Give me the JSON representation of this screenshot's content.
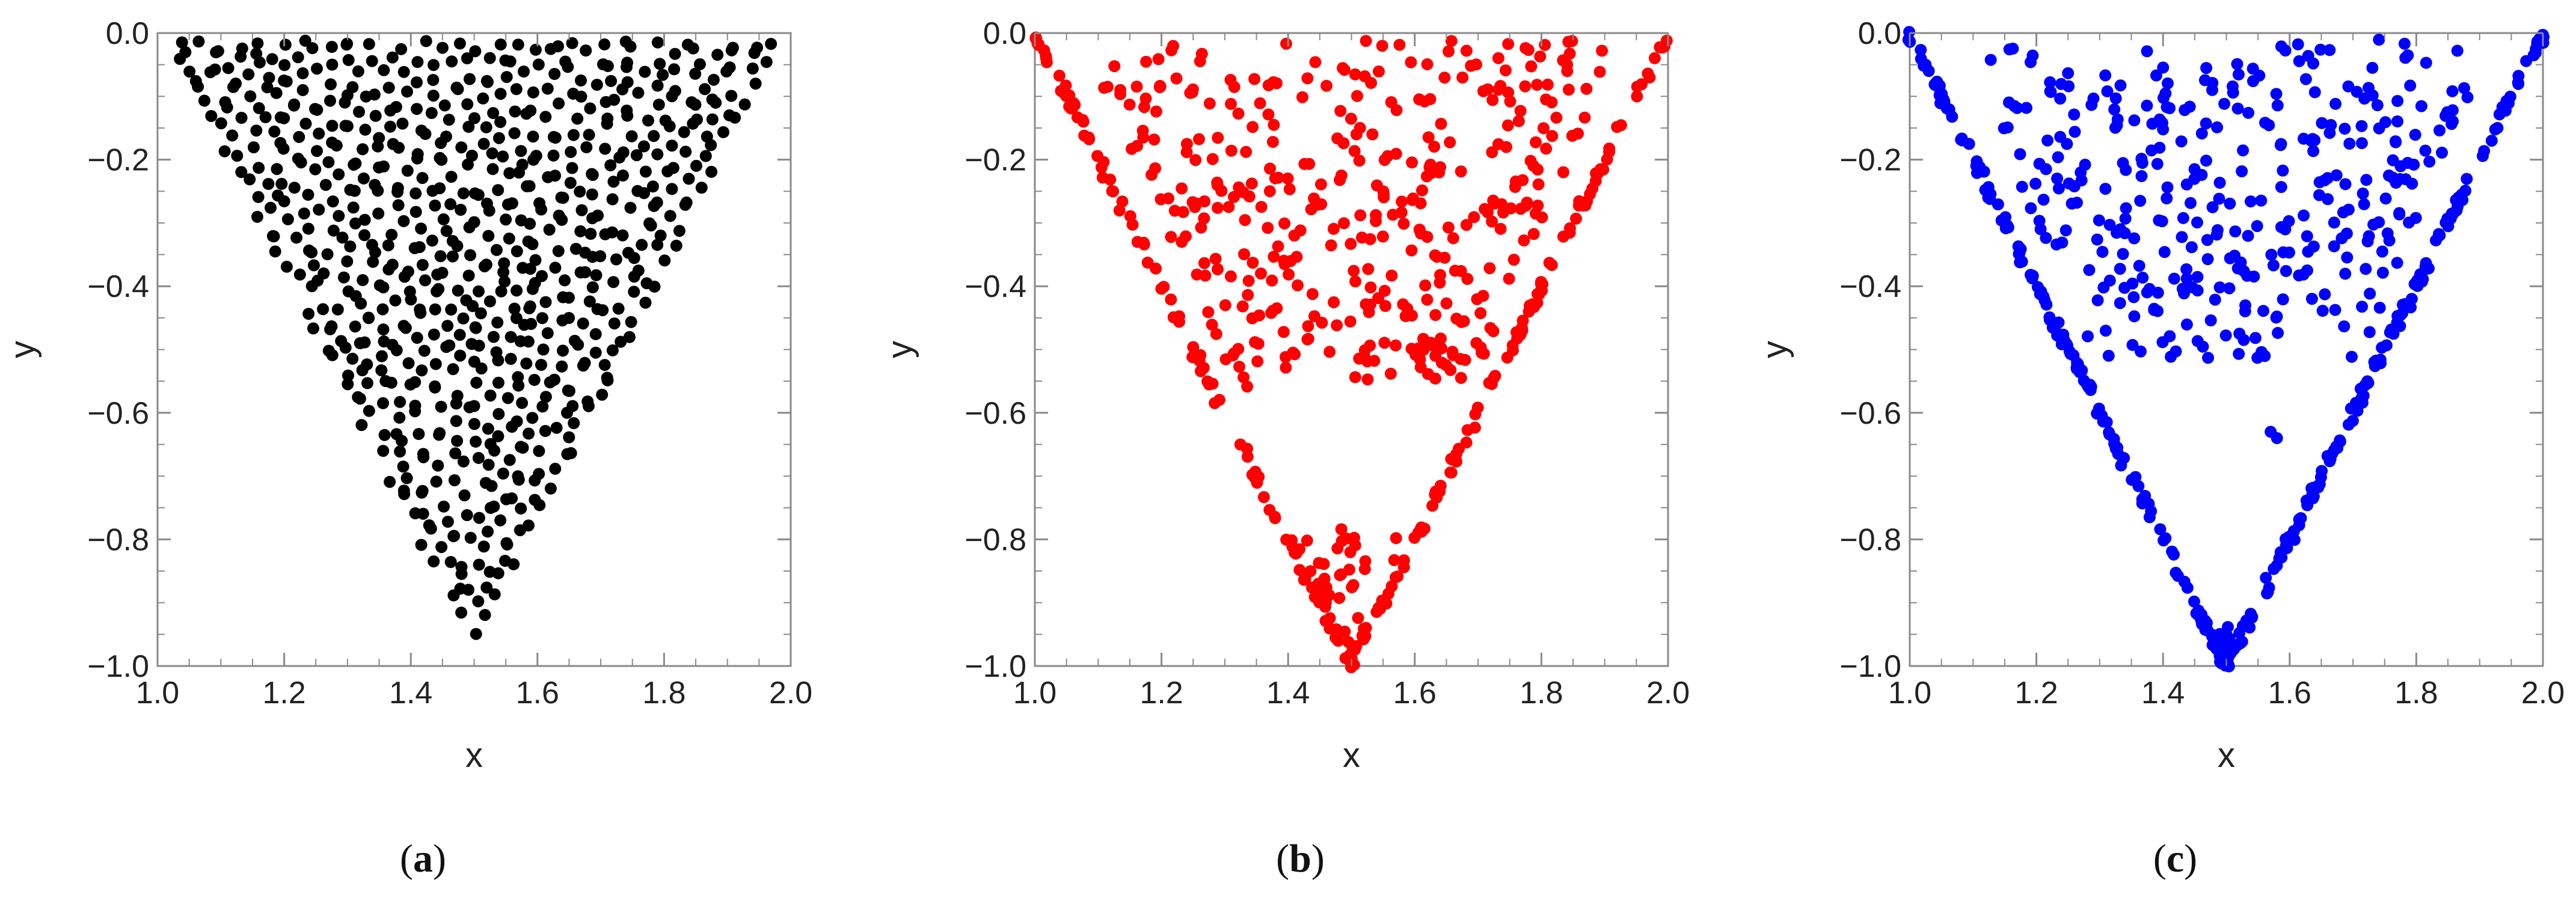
{
  "chart_data": [
    {
      "type": "scatter",
      "panel_label": "(a)",
      "panel_letter": "a",
      "xlabel": "x",
      "ylabel": "y",
      "xlim": [
        1.0,
        2.0
      ],
      "ylim": [
        -1.0,
        0.0
      ],
      "xticks": [
        "1.0",
        "1.2",
        "1.4",
        "1.6",
        "1.8",
        "2.0"
      ],
      "yticks": [
        "-1.0",
        "-0.8",
        "-0.6",
        "-0.4",
        "-0.2",
        "0.0"
      ],
      "color": "#000000",
      "distribution": "uniform-fill",
      "triangle": {
        "top_left": [
          1.0,
          0.0
        ],
        "top_right": [
          2.0,
          0.0
        ],
        "bottom": [
          1.5,
          -1.0
        ]
      },
      "n_points": 720,
      "seed": 11
    },
    {
      "type": "scatter",
      "panel_label": "(b)",
      "panel_letter": "b",
      "xlabel": "x",
      "ylabel": "y",
      "xlim": [
        1.0,
        2.0
      ],
      "ylim": [
        -1.0,
        0.0
      ],
      "xticks": [
        "1.0",
        "1.2",
        "1.4",
        "1.6",
        "1.8",
        "2.0"
      ],
      "yticks": [
        "-1.0",
        "-0.8",
        "-0.6",
        "-0.4",
        "-0.2",
        "0.0"
      ],
      "color": "#ff0000",
      "distribution": "edges-plus-cluster",
      "triangle": {
        "top_left": [
          1.0,
          0.0
        ],
        "top_right": [
          2.0,
          0.0
        ],
        "bottom": [
          1.5,
          -1.0
        ]
      },
      "n_edge_points": 200,
      "n_cluster_points": 380,
      "cluster_y_range": [
        -0.56,
        0.0
      ],
      "n_tip_points": 45,
      "tip_y_range": [
        -1.0,
        -0.77
      ],
      "seed": 23
    },
    {
      "type": "scatter",
      "panel_label": "(c)",
      "panel_letter": "c",
      "xlabel": "x",
      "ylabel": "y",
      "xlim": [
        1.0,
        2.0
      ],
      "ylim": [
        -1.0,
        0.0
      ],
      "xticks": [
        "1.0",
        "1.2",
        "1.4",
        "1.6",
        "1.8",
        "2.0"
      ],
      "yticks": [
        "-1.0",
        "-0.8",
        "-0.6",
        "-0.4",
        "-0.2",
        "0.0"
      ],
      "color": "#0000ff",
      "distribution": "edges-plus-cluster",
      "triangle": {
        "top_left": [
          1.0,
          0.0
        ],
        "top_right": [
          2.0,
          0.0
        ],
        "bottom": [
          1.5,
          -1.0
        ]
      },
      "n_edge_points": 300,
      "n_cluster_points": 340,
      "cluster_y_range": [
        -0.52,
        0.0
      ],
      "n_tip_points": 20,
      "tip_y_range": [
        -1.0,
        -0.93
      ],
      "extra_points": [
        [
          1.57,
          -0.63
        ],
        [
          1.58,
          -0.64
        ]
      ],
      "seed": 37
    }
  ]
}
